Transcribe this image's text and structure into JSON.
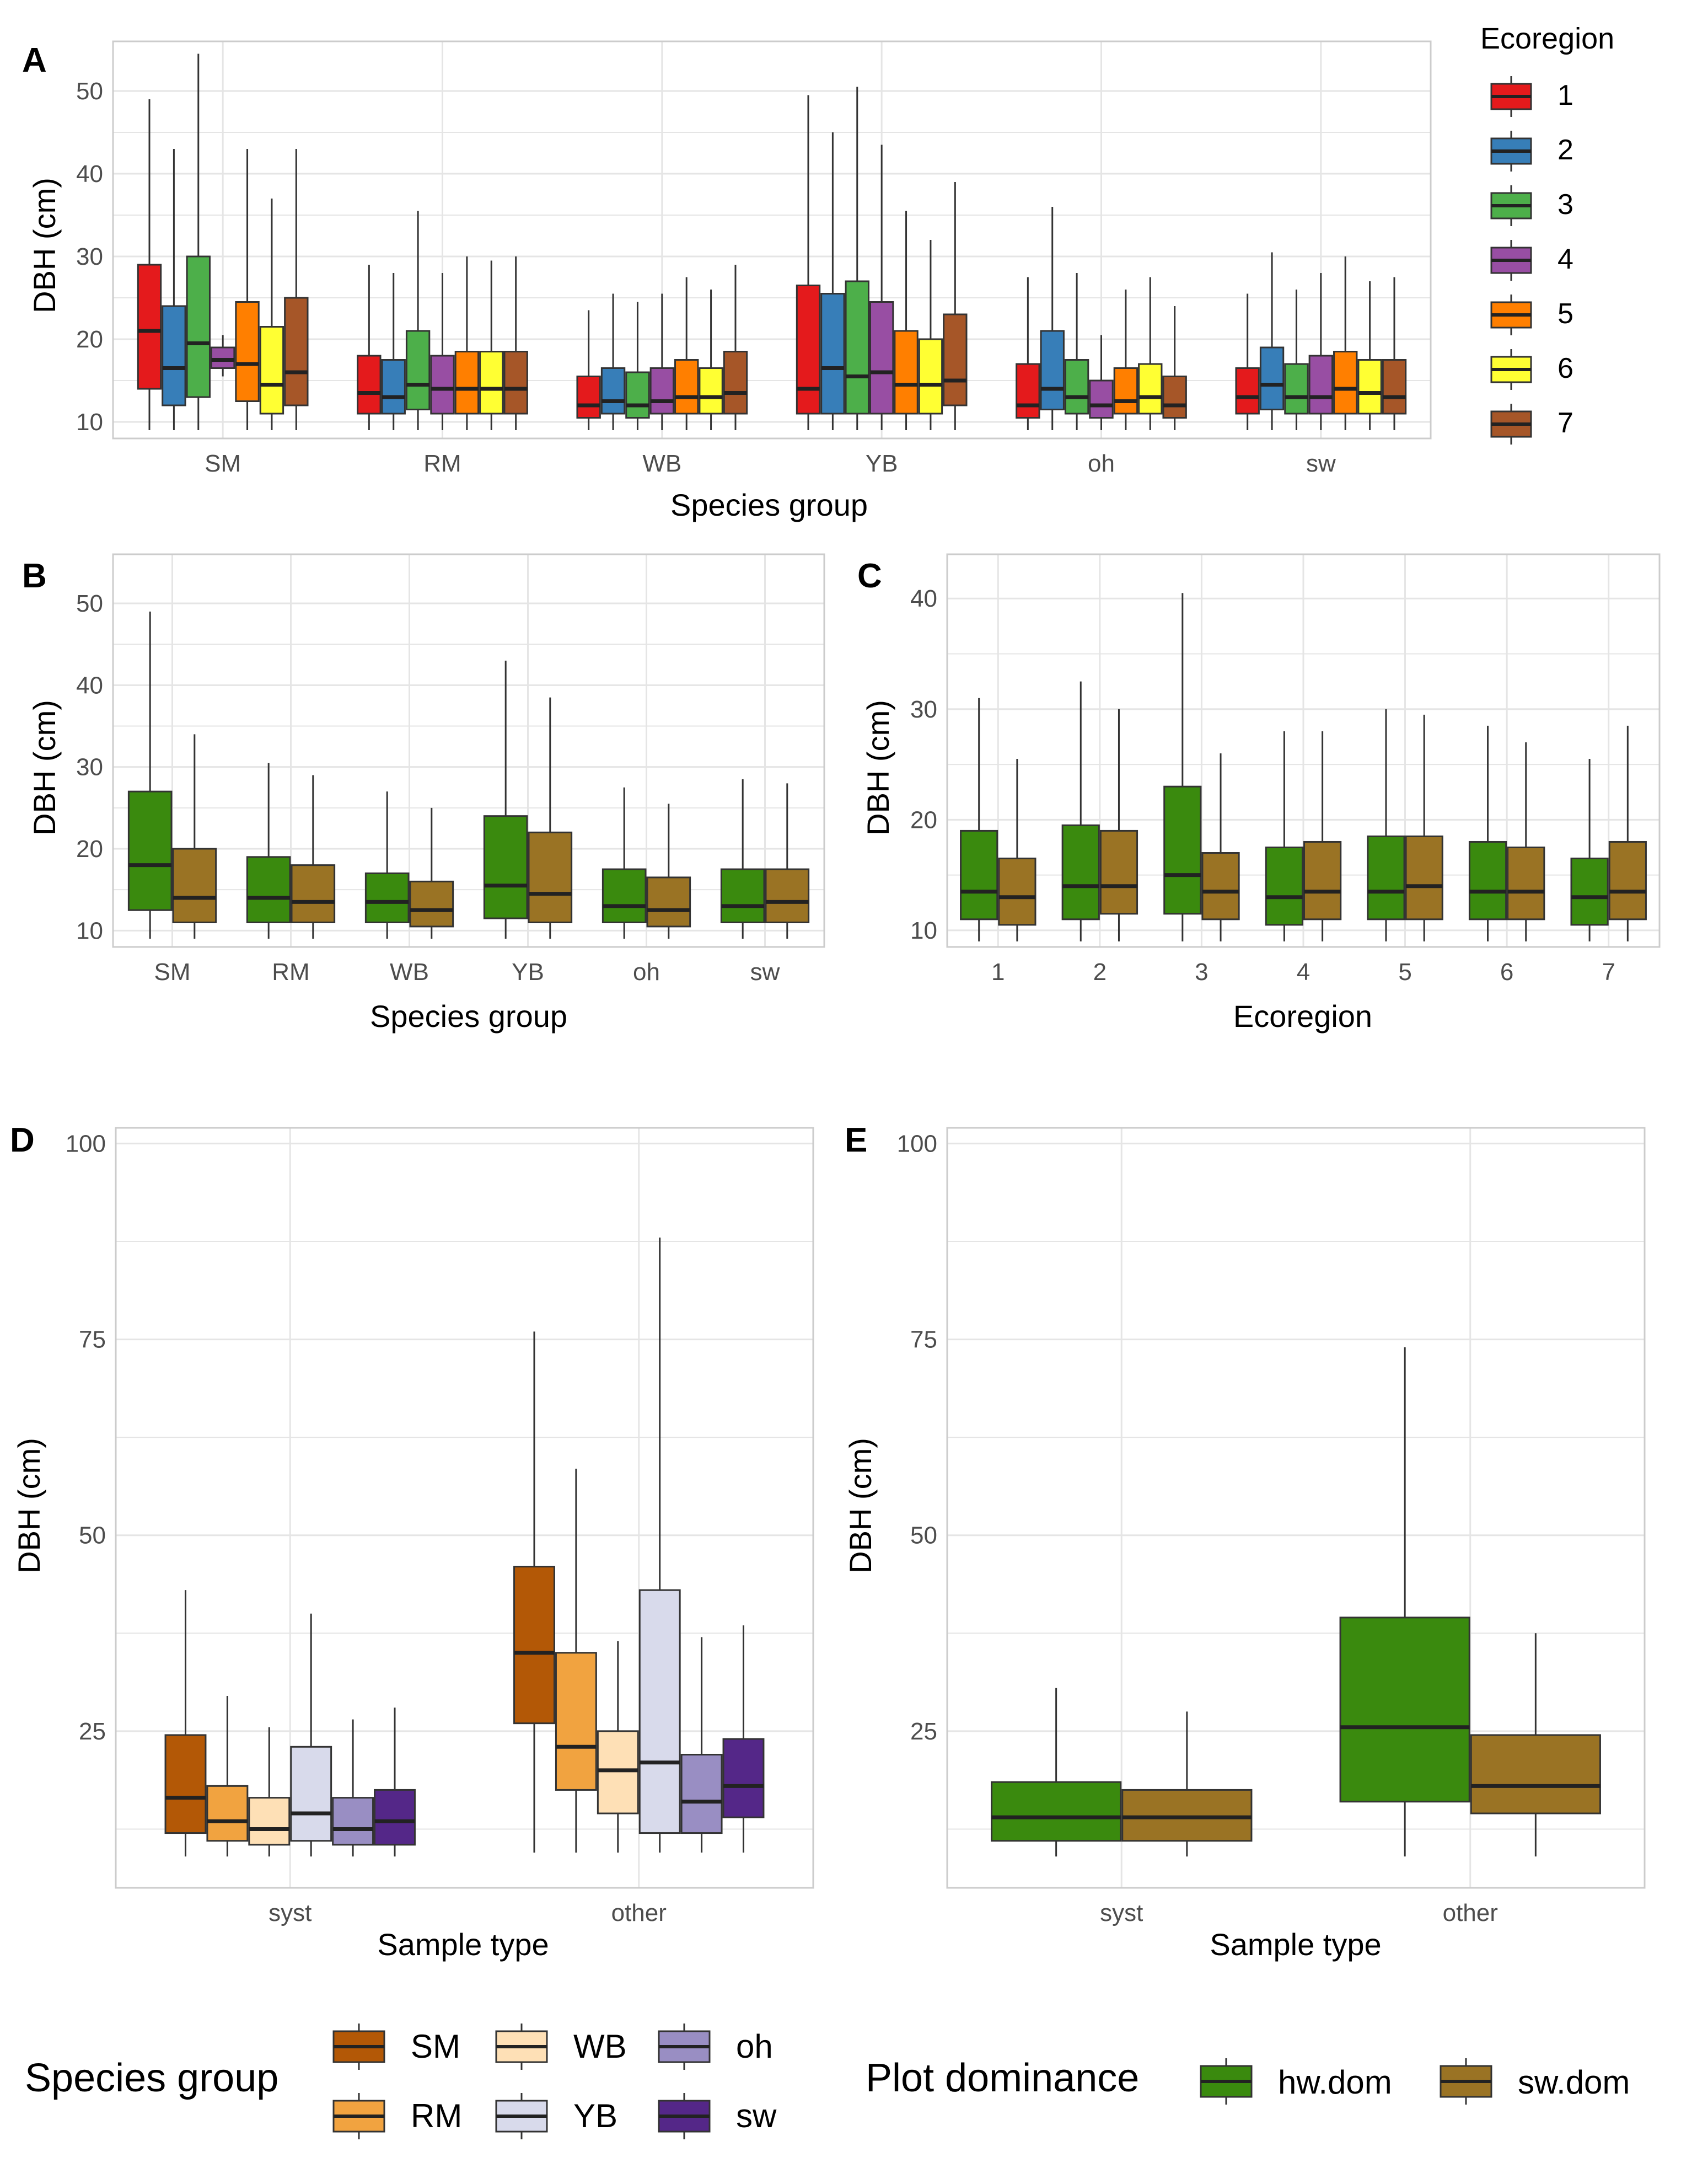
{
  "colors": {
    "ecoregion": [
      "#e41a1c",
      "#377eb8",
      "#4daf4a",
      "#984ea3",
      "#ff7f00",
      "#ffff33",
      "#a65628"
    ],
    "species": [
      "#b35806",
      "#f1a340",
      "#fee0b6",
      "#d8daeb",
      "#998ec3",
      "#542788"
    ],
    "dominance": [
      "#3a8a0e",
      "#9a7324"
    ],
    "grid": "#e5e5e5",
    "panel_border": "#cccccc"
  },
  "legends": {
    "ecoregion": {
      "title": "Ecoregion",
      "entries": [
        "1",
        "2",
        "3",
        "4",
        "5",
        "6",
        "7"
      ]
    },
    "species": {
      "title": "Species group",
      "entries": [
        "SM",
        "RM",
        "WB",
        "YB",
        "oh",
        "sw"
      ]
    },
    "dominance": {
      "title": "Plot dominance",
      "entries": [
        "hw.dom",
        "sw.dom"
      ]
    }
  },
  "chart_data": [
    {
      "panel": "A",
      "type": "boxplot",
      "xlabel": "Species group",
      "ylabel": "DBH (cm)",
      "ylim": [
        8,
        56
      ],
      "yticks": [
        10,
        20,
        30,
        40,
        50
      ],
      "categories": [
        "SM",
        "RM",
        "WB",
        "YB",
        "oh",
        "sw"
      ],
      "groups": [
        "1",
        "2",
        "3",
        "4",
        "5",
        "6",
        "7"
      ],
      "color_set": "ecoregion",
      "boxes": [
        [
          [
            9,
            14,
            21,
            29,
            49
          ],
          [
            9,
            12,
            16.5,
            24,
            43
          ],
          [
            9,
            13,
            19.5,
            30,
            54.5
          ],
          [
            15.5,
            16.5,
            17.5,
            19,
            20.5
          ],
          [
            9,
            12.5,
            17,
            24.5,
            43
          ],
          [
            9,
            11,
            14.5,
            21.5,
            37
          ],
          [
            9,
            12,
            16,
            25,
            43
          ]
        ],
        [
          [
            9,
            11,
            13.5,
            18,
            29
          ],
          [
            9,
            11,
            13,
            17.5,
            28
          ],
          [
            9,
            11.5,
            14.5,
            21,
            35.5
          ],
          [
            9,
            11,
            14,
            18,
            28
          ],
          [
            9,
            11,
            14,
            18.5,
            30
          ],
          [
            9,
            11,
            14,
            18.5,
            29.5
          ],
          [
            9,
            11,
            14,
            18.5,
            30
          ]
        ],
        [
          [
            9,
            10.5,
            12,
            15.5,
            23.5
          ],
          [
            9,
            11,
            12.5,
            16.5,
            25.5
          ],
          [
            9,
            10.5,
            12,
            16,
            24.5
          ],
          [
            9,
            11,
            12.5,
            16.5,
            25.5
          ],
          [
            9,
            11,
            13,
            17.5,
            27.5
          ],
          [
            9,
            11,
            13,
            16.5,
            26
          ],
          [
            9,
            11,
            13.5,
            18.5,
            29
          ]
        ],
        [
          [
            9,
            11,
            14,
            26.5,
            49.5
          ],
          [
            9,
            11,
            16.5,
            25.5,
            45
          ],
          [
            9,
            11,
            15.5,
            27,
            50.5
          ],
          [
            9,
            11,
            16,
            24.5,
            43.5
          ],
          [
            9,
            11,
            14.5,
            21,
            35.5
          ],
          [
            9,
            11,
            14.5,
            20,
            32
          ],
          [
            9,
            12,
            15,
            23,
            39
          ]
        ],
        [
          [
            9,
            10.5,
            12,
            17,
            27.5
          ],
          [
            9,
            11.5,
            14,
            21,
            36
          ],
          [
            9,
            11,
            13,
            17.5,
            28
          ],
          [
            9,
            10.5,
            12,
            15,
            20.5
          ],
          [
            9,
            11,
            12.5,
            16.5,
            26
          ],
          [
            9,
            11,
            13,
            17,
            27.5
          ],
          [
            9,
            10.5,
            12,
            15.5,
            24
          ]
        ],
        [
          [
            9,
            11,
            13,
            16.5,
            25.5
          ],
          [
            9,
            11.5,
            14.5,
            19,
            30.5
          ],
          [
            9,
            11,
            13,
            17,
            26
          ],
          [
            9,
            11,
            13,
            18,
            28
          ],
          [
            9,
            11,
            14,
            18.5,
            30
          ],
          [
            9,
            11,
            13.5,
            17.5,
            27
          ],
          [
            9,
            11,
            13,
            17.5,
            27.5
          ]
        ]
      ]
    },
    {
      "panel": "B",
      "type": "boxplot",
      "xlabel": "Species group",
      "ylabel": "DBH (cm)",
      "ylim": [
        8,
        56
      ],
      "yticks": [
        10,
        20,
        30,
        40,
        50
      ],
      "categories": [
        "SM",
        "RM",
        "WB",
        "YB",
        "oh",
        "sw"
      ],
      "groups": [
        "hw.dom",
        "sw.dom"
      ],
      "color_set": "dominance",
      "boxes": [
        [
          [
            9,
            12.5,
            18,
            27,
            49
          ],
          [
            9,
            11,
            14,
            20,
            34
          ]
        ],
        [
          [
            9,
            11,
            14,
            19,
            30.5
          ],
          [
            9,
            11,
            13.5,
            18,
            29
          ]
        ],
        [
          [
            9,
            11,
            13.5,
            17,
            27
          ],
          [
            9,
            10.5,
            12.5,
            16,
            25
          ]
        ],
        [
          [
            9,
            11.5,
            15.5,
            24,
            43
          ],
          [
            9,
            11,
            14.5,
            22,
            38.5
          ]
        ],
        [
          [
            9,
            11,
            13,
            17.5,
            27.5
          ],
          [
            9,
            10.5,
            12.5,
            16.5,
            25.5
          ]
        ],
        [
          [
            9,
            11,
            13,
            17.5,
            28.5
          ],
          [
            9,
            11,
            13.5,
            17.5,
            28
          ]
        ]
      ]
    },
    {
      "panel": "C",
      "type": "boxplot",
      "xlabel": "Ecoregion",
      "ylabel": "DBH (cm)",
      "ylim": [
        8.5,
        44
      ],
      "yticks": [
        10,
        20,
        30,
        40
      ],
      "categories": [
        "1",
        "2",
        "3",
        "4",
        "5",
        "6",
        "7"
      ],
      "groups": [
        "hw.dom",
        "sw.dom"
      ],
      "color_set": "dominance",
      "boxes": [
        [
          [
            9,
            11,
            13.5,
            19,
            31
          ],
          [
            9,
            10.5,
            13,
            16.5,
            25.5
          ]
        ],
        [
          [
            9,
            11,
            14,
            19.5,
            32.5
          ],
          [
            9,
            11.5,
            14,
            19,
            30
          ]
        ],
        [
          [
            9,
            11.5,
            15,
            23,
            40.5
          ],
          [
            9,
            11,
            13.5,
            17,
            26
          ]
        ],
        [
          [
            9,
            10.5,
            13,
            17.5,
            28
          ],
          [
            9,
            11,
            13.5,
            18,
            28
          ]
        ],
        [
          [
            9,
            11,
            13.5,
            18.5,
            30
          ],
          [
            9,
            11,
            14,
            18.5,
            29.5
          ]
        ],
        [
          [
            9,
            11,
            13.5,
            18,
            28.5
          ],
          [
            9,
            11,
            13.5,
            17.5,
            27
          ]
        ],
        [
          [
            9,
            10.5,
            13,
            16.5,
            25.5
          ],
          [
            9,
            11,
            13.5,
            18,
            28.5
          ]
        ]
      ]
    },
    {
      "panel": "D",
      "type": "boxplot",
      "xlabel": "Sample type",
      "ylabel": "DBH (cm)",
      "ylim": [
        5,
        102
      ],
      "yticks": [
        25,
        50,
        75,
        100
      ],
      "minor_ticks": [
        12.5,
        37.5,
        62.5,
        87.5
      ],
      "categories": [
        "syst",
        "other"
      ],
      "groups": [
        "SM",
        "RM",
        "WB",
        "YB",
        "oh",
        "sw"
      ],
      "color_set": "species",
      "boxes": [
        [
          [
            9,
            12,
            16.5,
            24.5,
            43
          ],
          [
            9,
            11,
            13.5,
            18,
            29.5
          ],
          [
            9,
            10.5,
            12.5,
            16.5,
            25.5
          ],
          [
            9,
            11,
            14.5,
            23,
            40
          ],
          [
            9,
            10.5,
            12.5,
            16.5,
            26.5
          ],
          [
            9,
            10.5,
            13.5,
            17.5,
            28
          ]
        ],
        [
          [
            9.5,
            26,
            35,
            46,
            76
          ],
          [
            9.5,
            17.5,
            23,
            35,
            58.5
          ],
          [
            9.5,
            14.5,
            20,
            25,
            36.5
          ],
          [
            9.5,
            12,
            21,
            43,
            88
          ],
          [
            9.5,
            12,
            16,
            22,
            37
          ],
          [
            9.5,
            14,
            18,
            24,
            38.5
          ]
        ]
      ]
    },
    {
      "panel": "E",
      "type": "boxplot",
      "xlabel": "Sample type",
      "ylabel": "DBH (cm)",
      "ylim": [
        5,
        102
      ],
      "yticks": [
        25,
        50,
        75,
        100
      ],
      "minor_ticks": [
        12.5,
        37.5,
        62.5,
        87.5
      ],
      "categories": [
        "syst",
        "other"
      ],
      "groups": [
        "hw.dom",
        "sw.dom"
      ],
      "color_set": "dominance",
      "boxes": [
        [
          [
            9,
            11,
            14,
            18.5,
            30.5
          ],
          [
            9,
            11,
            14,
            17.5,
            27.5
          ]
        ],
        [
          [
            9,
            16,
            25.5,
            39.5,
            74
          ],
          [
            9,
            14.5,
            18,
            24.5,
            37.5
          ]
        ]
      ]
    }
  ]
}
